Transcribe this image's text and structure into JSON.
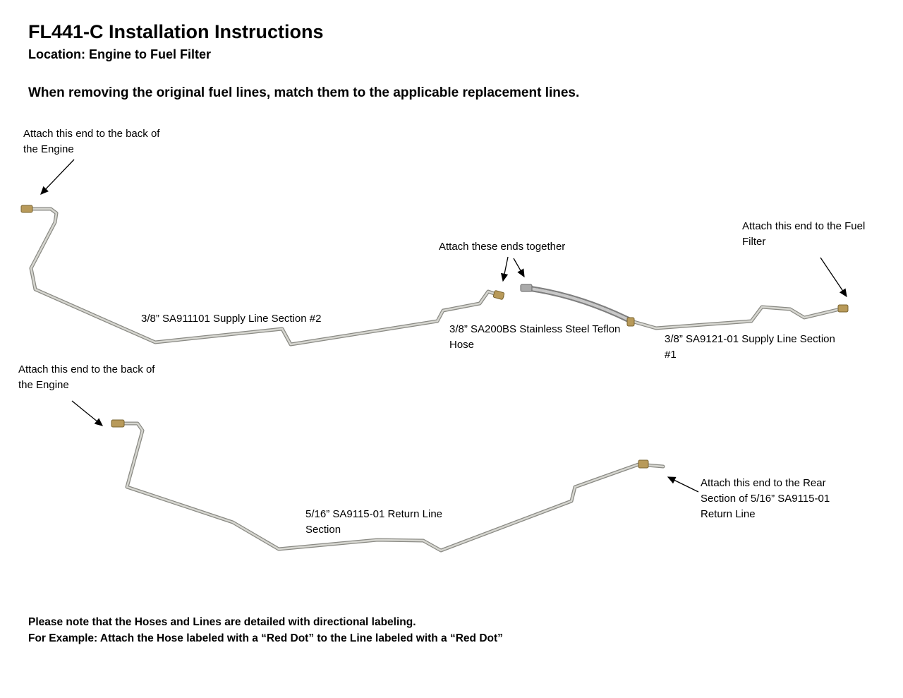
{
  "title": "FL441-C Installation Instructions",
  "subtitle": "Location: Engine to Fuel Filter",
  "instruction": "When removing the original fuel lines, match them to the applicable replacement lines.",
  "labels": {
    "engine_end_supply": [
      "Attach this end to the back of",
      "the Engine"
    ],
    "ends_together": "Attach these ends together",
    "fuel_filter_end": [
      "Attach this end to the Fuel",
      "Filter"
    ],
    "supply_section_2": "3/8” SA911101 Supply Line Section  #2",
    "hose": [
      "3/8” SA200BS Stainless Steel Teflon",
      "Hose"
    ],
    "supply_section_1": [
      "3/8” SA9121-01 Supply Line Section",
      "#1"
    ],
    "engine_end_return": [
      "Attach this end to the back of",
      "the Engine"
    ],
    "return_section": [
      "5/16” SA9115-01 Return Line",
      "Section"
    ],
    "rear_section_end": [
      "Attach this end to the Rear",
      "Section of 5/16” SA9115-01",
      "Return Line"
    ]
  },
  "notes": [
    "Please note that the Hoses and Lines are detailed with directional labeling.",
    "For Example: Attach the Hose labeled with a “Red Dot” to the Line labeled with a “Red Dot”"
  ],
  "colors": {
    "tube": "#b8b8b0",
    "tube_edge": "#8a8a84",
    "fitting": "#b89a5a",
    "hose": "#9a9a9a"
  }
}
